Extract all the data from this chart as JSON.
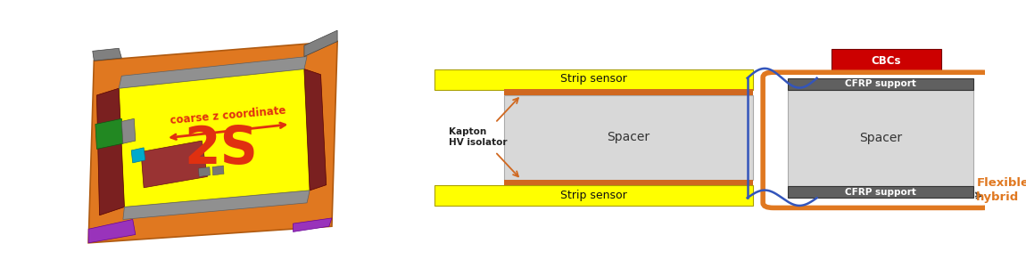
{
  "bg_color": "#ffffff",
  "left_panel": {
    "orange": "#e07820",
    "orange_dark": "#b05a10",
    "yellow": "#ffff00",
    "gray": "#888888",
    "gray_dark": "#555555",
    "darkred": "#8b2020",
    "purple": "#9933bb",
    "green": "#228822",
    "brown_red": "#993333",
    "cyan": "#00aacc",
    "red_text": "#e03010",
    "label_2S": "2S",
    "label_arrow": "coarse z coordinate"
  },
  "right_panel": {
    "yellow": "#ffff00",
    "orange_strip": "#d06820",
    "gray_spacer": "#d8d8d8",
    "gray_cfrp": "#606060",
    "red_cbcs": "#cc0000",
    "blue_curve": "#3355bb",
    "orange_hybrid": "#e07820",
    "strip_sensor_label": "Strip sensor",
    "spacer_label": "Spacer",
    "cfrp_top_label": "CFRP support",
    "cfrp_bot_label": "CFRP support",
    "cbcs_label": "CBCs",
    "kapton_label": "Kapton\nHV isolator",
    "flexible_label": "Flexible\nhybrid",
    "flexible_color": "#e07820"
  }
}
